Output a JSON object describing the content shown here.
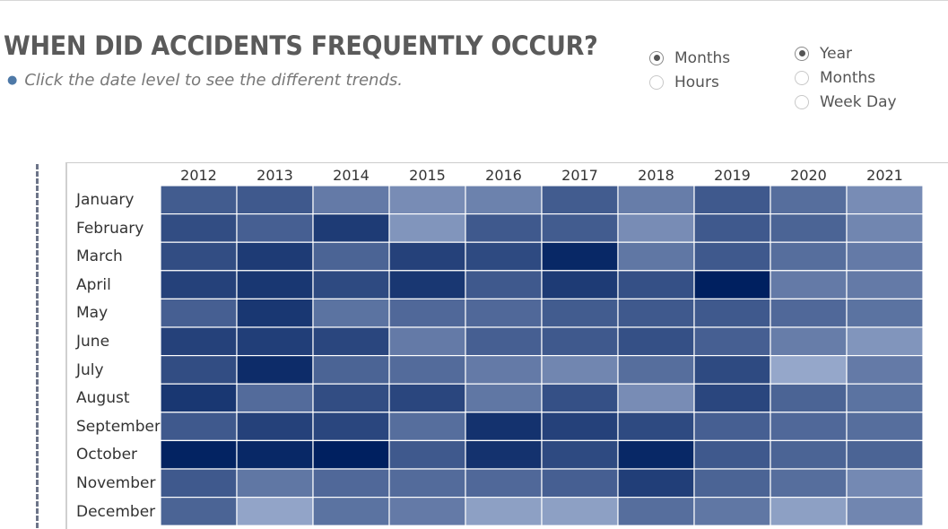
{
  "header": {
    "title": "WHEN DID ACCIDENTS FREQUENTLY OCCUR?",
    "subtitle": "Click the date level to see the different trends."
  },
  "filters": {
    "group1": {
      "options": [
        {
          "label": "Months",
          "checked": true
        },
        {
          "label": "Hours",
          "checked": false
        }
      ]
    },
    "group2": {
      "options": [
        {
          "label": "Year",
          "checked": true
        },
        {
          "label": "Months",
          "checked": false
        },
        {
          "label": "Week Day",
          "checked": false
        }
      ]
    }
  },
  "colors": {
    "scale_light": "#a6b6d6",
    "scale_dark": "#002060",
    "title": "#5a5a5a"
  },
  "chart_data": {
    "type": "heatmap",
    "title": "",
    "xlabel": "",
    "ylabel": "",
    "x_categories": [
      "2012",
      "2013",
      "2014",
      "2015",
      "2016",
      "2017",
      "2018",
      "2019",
      "2020",
      "2021"
    ],
    "y_categories": [
      "January",
      "February",
      "March",
      "April",
      "May",
      "June",
      "July",
      "August",
      "September",
      "October",
      "November",
      "December"
    ],
    "value_scale": "relative intensity 0 (lightest) to 1 (darkest)",
    "values": [
      [
        0.6,
        0.62,
        0.4,
        0.28,
        0.35,
        0.6,
        0.38,
        0.62,
        0.48,
        0.28
      ],
      [
        0.7,
        0.58,
        0.82,
        0.22,
        0.62,
        0.6,
        0.28,
        0.62,
        0.55,
        0.32
      ],
      [
        0.7,
        0.82,
        0.55,
        0.78,
        0.72,
        0.95,
        0.42,
        0.62,
        0.48,
        0.4
      ],
      [
        0.78,
        0.85,
        0.72,
        0.85,
        0.62,
        0.82,
        0.68,
        1.0,
        0.4,
        0.4
      ],
      [
        0.58,
        0.85,
        0.45,
        0.52,
        0.52,
        0.6,
        0.62,
        0.62,
        0.52,
        0.45
      ],
      [
        0.78,
        0.8,
        0.75,
        0.4,
        0.58,
        0.62,
        0.68,
        0.58,
        0.38,
        0.22
      ],
      [
        0.7,
        0.92,
        0.55,
        0.5,
        0.4,
        0.32,
        0.48,
        0.72,
        0.1,
        0.4
      ],
      [
        0.85,
        0.5,
        0.7,
        0.75,
        0.42,
        0.68,
        0.28,
        0.75,
        0.55,
        0.45
      ],
      [
        0.62,
        0.78,
        0.75,
        0.48,
        0.88,
        0.78,
        0.72,
        0.58,
        0.52,
        0.48
      ],
      [
        0.98,
        0.95,
        1.0,
        0.62,
        0.88,
        0.72,
        0.95,
        0.62,
        0.55,
        0.55
      ],
      [
        0.62,
        0.42,
        0.52,
        0.5,
        0.52,
        0.58,
        0.8,
        0.55,
        0.48,
        0.3
      ],
      [
        0.55,
        0.12,
        0.45,
        0.4,
        0.15,
        0.15,
        0.48,
        0.42,
        0.15,
        0.32
      ]
    ],
    "grid": false,
    "legend": "none"
  }
}
